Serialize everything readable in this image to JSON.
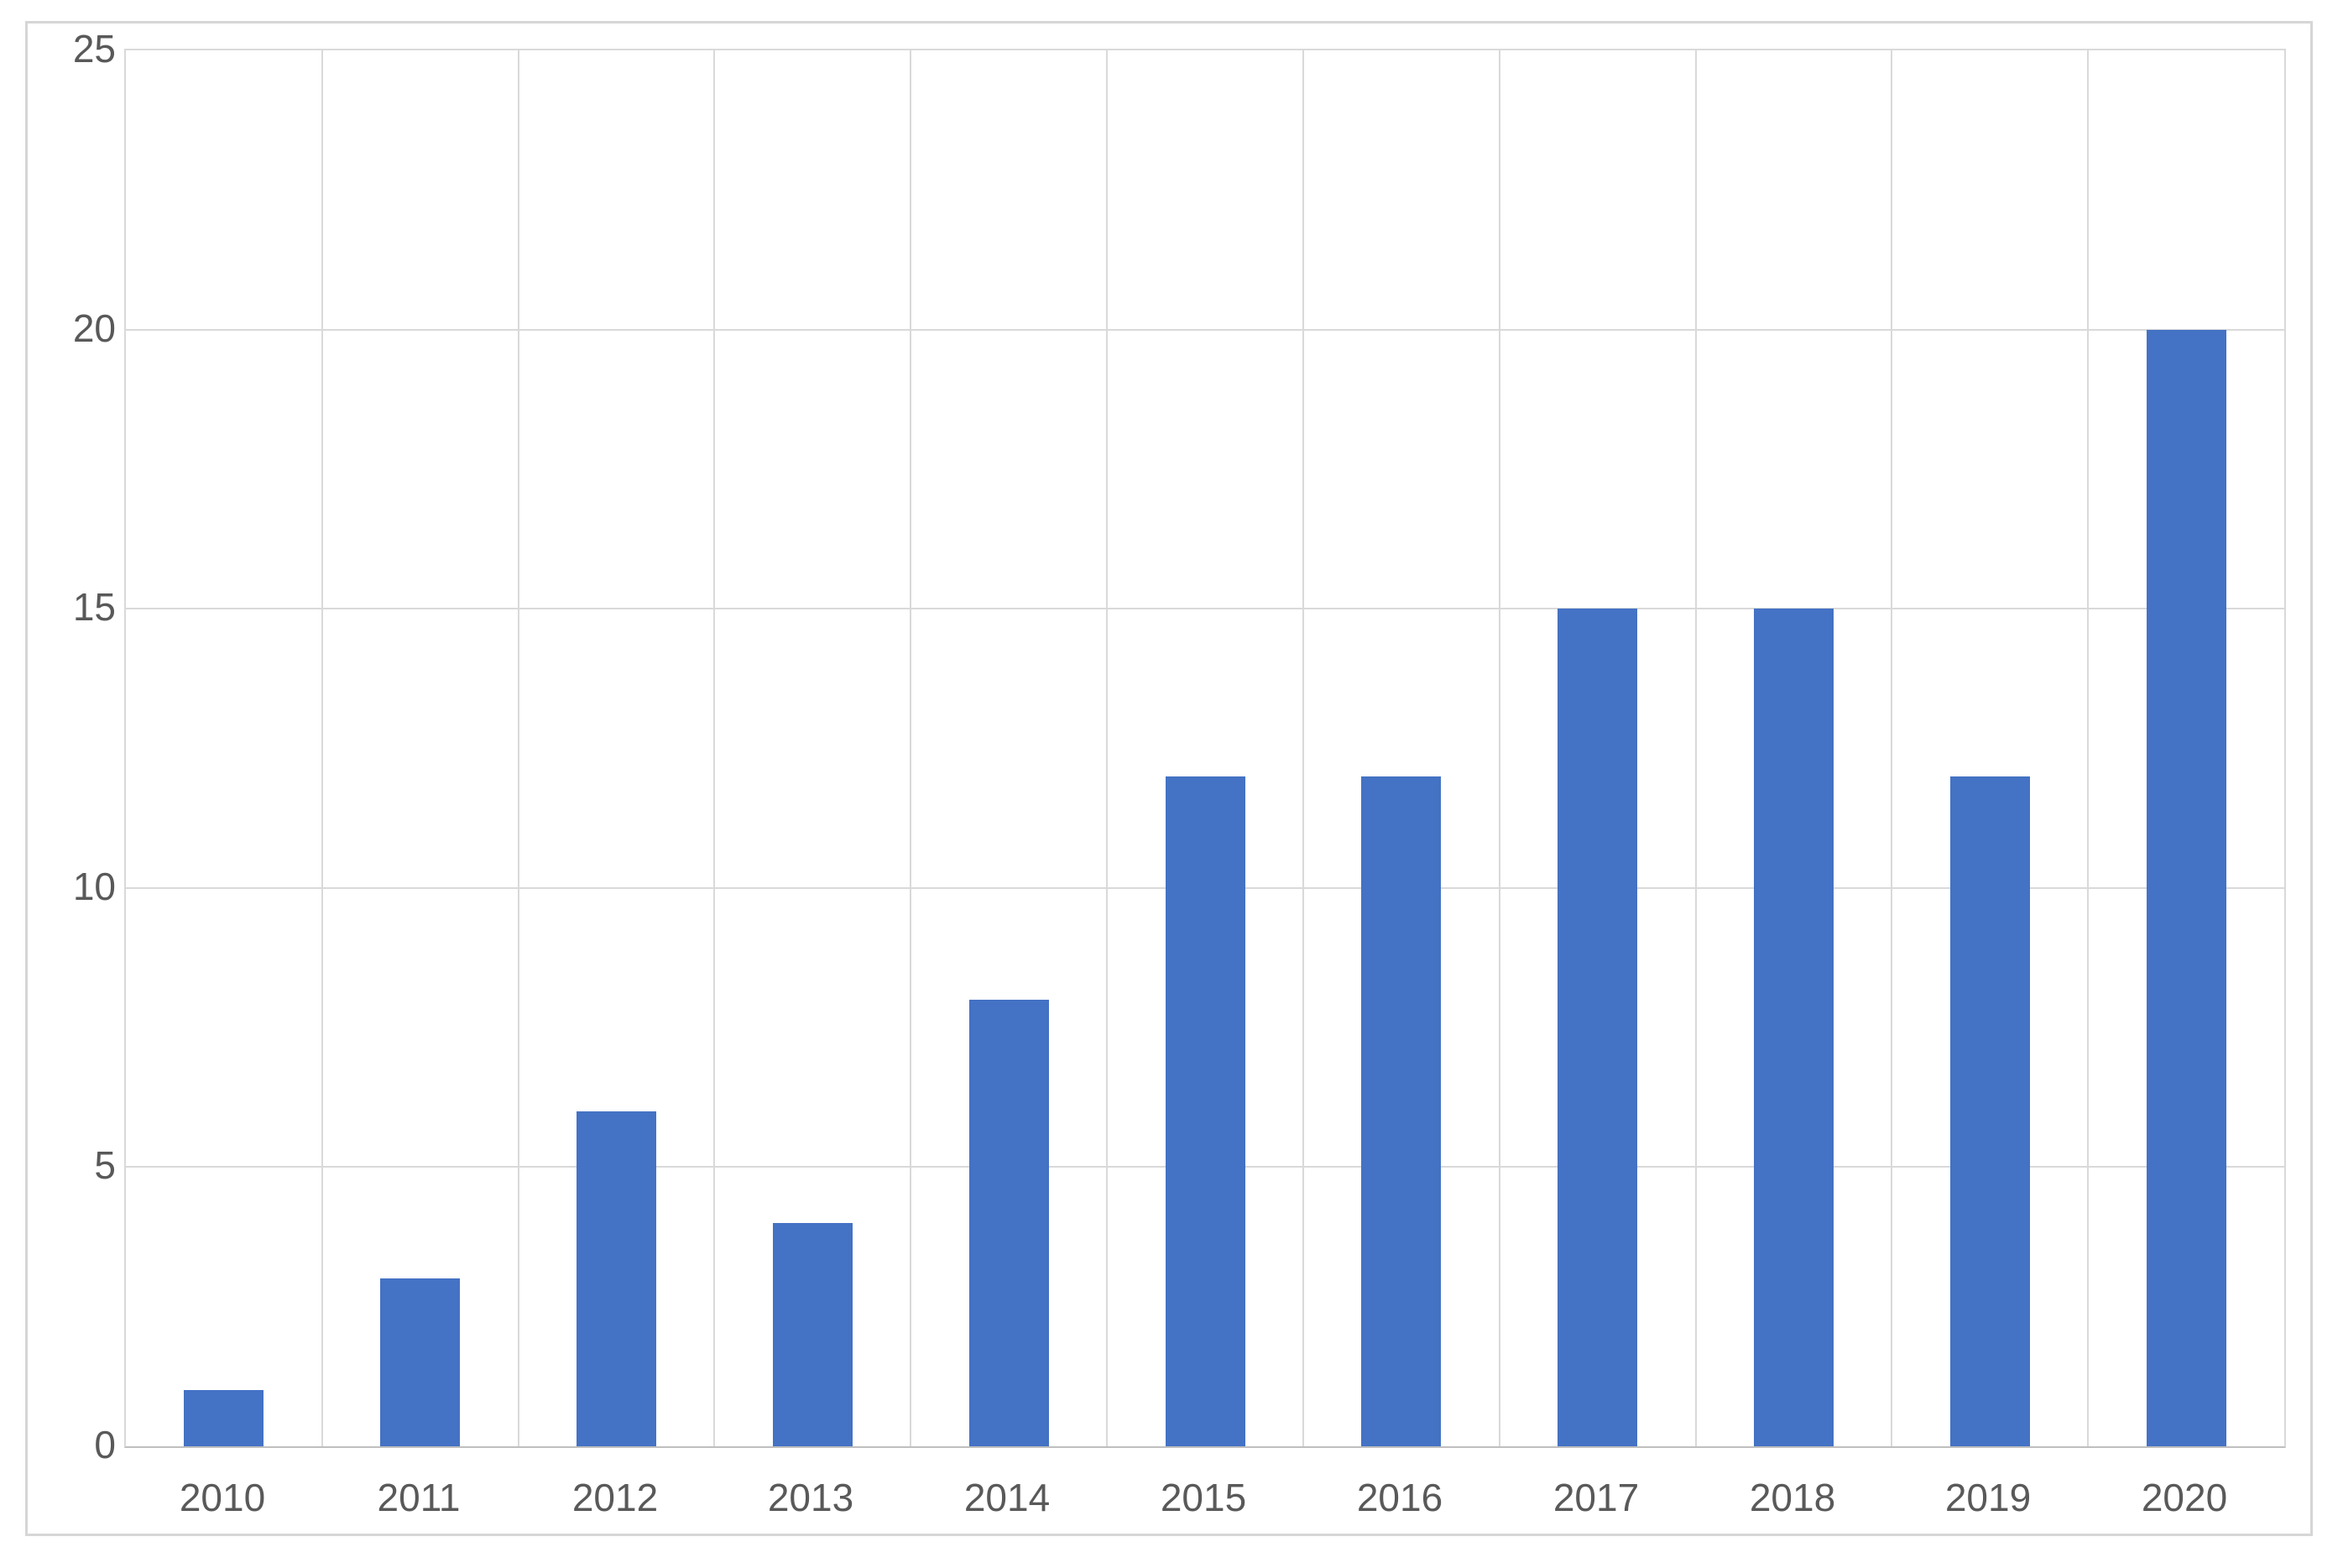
{
  "chart_data": {
    "type": "bar",
    "title": "",
    "xlabel": "",
    "ylabel": "",
    "categories": [
      "2010",
      "2011",
      "2012",
      "2013",
      "2014",
      "2015",
      "2016",
      "2017",
      "2018",
      "2019",
      "2020"
    ],
    "values": [
      1,
      3,
      6,
      4,
      8,
      12,
      12,
      15,
      15,
      12,
      20
    ],
    "ylim": [
      0,
      25
    ],
    "yticks": [
      0,
      5,
      10,
      15,
      20,
      25
    ],
    "grid": true,
    "legend": false,
    "colors": {
      "bar": "#4472c4",
      "gridline": "#d9d9d9",
      "axis_line": "#bfbfbf",
      "tick_label": "#595959",
      "frame_border": "#d6d6d6",
      "background": "#ffffff"
    }
  }
}
